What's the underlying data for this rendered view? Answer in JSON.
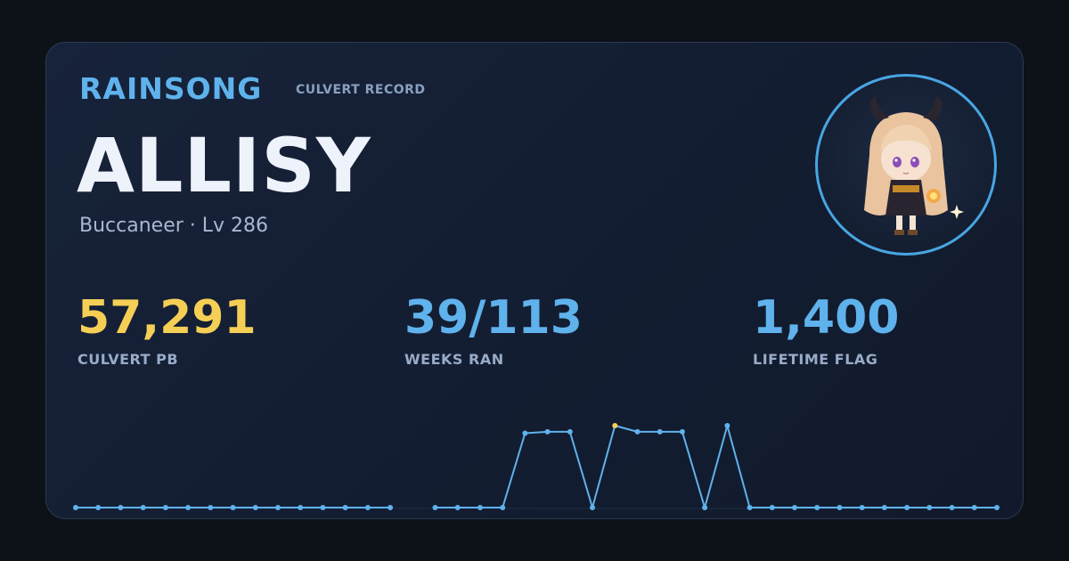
{
  "header": {
    "brand": "RAINSONG",
    "subtitle": "CULVERT RECORD"
  },
  "player": {
    "name": "ALLISY",
    "meta": "Buccaneer · Lv 286"
  },
  "stats": {
    "pb": {
      "value": "57,291",
      "label": "CULVERT PB"
    },
    "weeks": {
      "value": "39/113",
      "label": "WEEKS RAN"
    },
    "flag": {
      "value": "1,400",
      "label": "LIFETIME FLAG"
    }
  },
  "colors": {
    "accent": "#5fb2ec",
    "highlight": "#f5cf55",
    "text": "#eef2fb",
    "muted": "#98abc7"
  },
  "chart_data": {
    "type": "line",
    "grid": false,
    "legend": "none",
    "series": [
      {
        "values": [
          0,
          0,
          0,
          0,
          0,
          0,
          0,
          0,
          0,
          0,
          0,
          0,
          0,
          0,
          0,
          null,
          0,
          0,
          0,
          0,
          52000,
          53000,
          53000,
          0,
          57291,
          53000,
          53000,
          53000,
          0,
          57291,
          0,
          0,
          0,
          0,
          0,
          0,
          0,
          0,
          0,
          0,
          0,
          0
        ],
        "highlight_index": 24
      }
    ],
    "ylim": [
      0,
      57291
    ]
  }
}
